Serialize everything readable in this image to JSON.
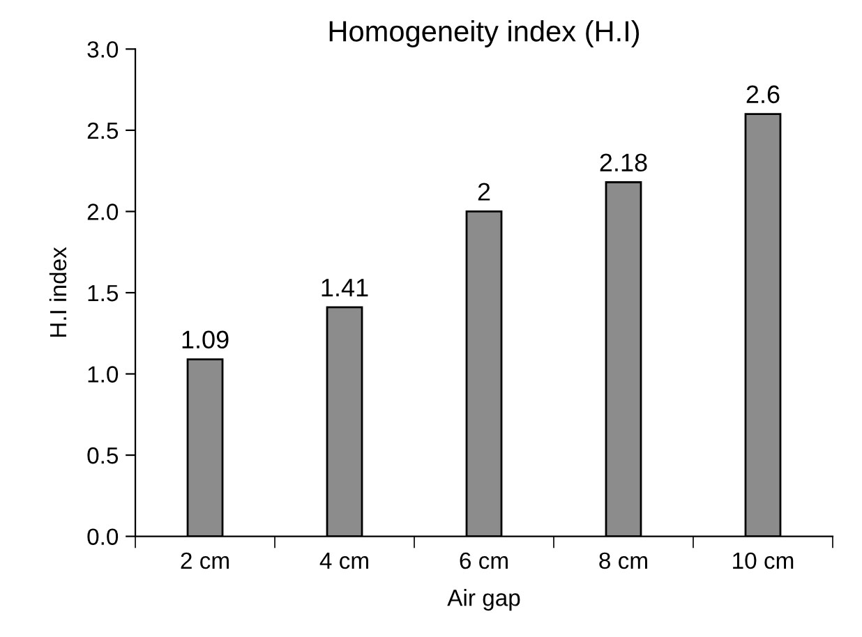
{
  "chart_data": {
    "type": "bar",
    "title": "Homogeneity index (H.I)",
    "xlabel": "Air gap",
    "ylabel": "H.I index",
    "categories": [
      "2 cm",
      "4 cm",
      "6 cm",
      "8 cm",
      "10 cm"
    ],
    "values": [
      1.09,
      1.41,
      2,
      2.18,
      2.6
    ],
    "color": "#8c8c8c",
    "data_labels": true,
    "grid": false,
    "legend": false,
    "ylim": [
      0,
      3
    ],
    "yticks": [
      {
        "value": 0,
        "label": "0.0"
      },
      {
        "value": 0.5,
        "label": "0.5"
      },
      {
        "value": 1,
        "label": "1.0"
      },
      {
        "value": 1.5,
        "label": "1.5"
      },
      {
        "value": 2,
        "label": "2.0"
      },
      {
        "value": 2.5,
        "label": "2.5"
      },
      {
        "value": 3,
        "label": "3.0"
      }
    ]
  }
}
